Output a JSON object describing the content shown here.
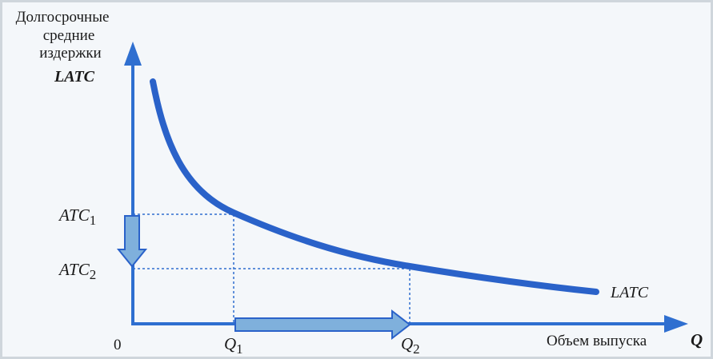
{
  "y_axis_label": {
    "line1": "Долгосрочные",
    "line2": "средние",
    "line3": "издержки",
    "line4": "LATC"
  },
  "x_axis_label": {
    "text": "Объем выпуска",
    "symbol": "Q"
  },
  "origin_label": "0",
  "curve_label": "LATC",
  "tick_labels": {
    "atc1_base": "ATC",
    "atc1_sub": "1",
    "atc2_base": "ATC",
    "atc2_sub": "2",
    "q1_base": "Q",
    "q1_sub": "1",
    "q2_base": "Q",
    "q2_sub": "2"
  },
  "colors": {
    "curve": "#2a62c9",
    "axis": "#2f6fd0",
    "arrow_fill": "#7fb0dc",
    "arrow_stroke": "#2a62c9",
    "guide": "#2f6fd0",
    "text": "#1a1a1a"
  }
}
